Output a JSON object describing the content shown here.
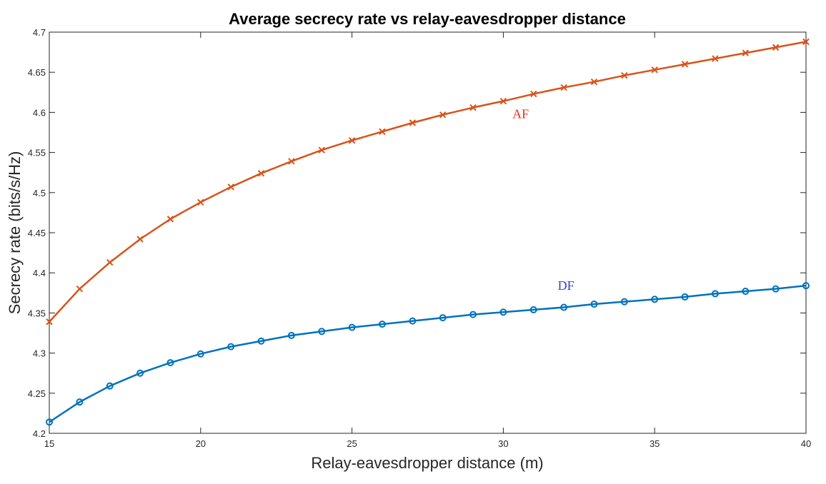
{
  "chart_data": {
    "type": "line",
    "title": "Average secrecy rate vs relay-eavesdropper distance",
    "xlabel": "Relay-eavesdropper distance (m)",
    "ylabel": "Secrecy rate (bits/s/Hz)",
    "xlim": [
      15,
      40
    ],
    "ylim": [
      4.2,
      4.7
    ],
    "xticks": [
      15,
      20,
      25,
      30,
      35,
      40
    ],
    "yticks": [
      4.2,
      4.25,
      4.3,
      4.35,
      4.4,
      4.45,
      4.5,
      4.55,
      4.6,
      4.65,
      4.7
    ],
    "xtick_labels": [
      "15",
      "20",
      "25",
      "30",
      "35",
      "40"
    ],
    "ytick_labels": [
      "4.2",
      "4.25",
      "4.3",
      "4.35",
      "4.4",
      "4.45",
      "4.5",
      "4.55",
      "4.6",
      "4.65",
      "4.7"
    ],
    "grid": false,
    "x": [
      15,
      16,
      17,
      18,
      19,
      20,
      21,
      22,
      23,
      24,
      25,
      26,
      27,
      28,
      29,
      30,
      31,
      32,
      33,
      34,
      35,
      36,
      37,
      38,
      39,
      40
    ],
    "series": [
      {
        "name": "AF",
        "color": "#D95319",
        "marker": "x",
        "values": [
          4.339,
          4.38,
          4.413,
          4.442,
          4.467,
          4.488,
          4.507,
          4.524,
          4.539,
          4.553,
          4.565,
          4.576,
          4.587,
          4.597,
          4.606,
          4.614,
          4.623,
          4.631,
          4.638,
          4.646,
          4.653,
          4.66,
          4.667,
          4.674,
          4.681,
          4.688
        ]
      },
      {
        "name": "DF",
        "color": "#0072BD",
        "marker": "o",
        "values": [
          4.214,
          4.239,
          4.259,
          4.275,
          4.288,
          4.299,
          4.308,
          4.315,
          4.322,
          4.327,
          4.332,
          4.336,
          4.34,
          4.344,
          4.348,
          4.351,
          4.354,
          4.357,
          4.361,
          4.364,
          4.367,
          4.37,
          4.374,
          4.377,
          4.38,
          4.384
        ]
      }
    ],
    "annotations": [
      {
        "text": "AF",
        "x": 30.3,
        "y": 4.593,
        "color": "#E8301C"
      },
      {
        "text": "DF",
        "x": 31.8,
        "y": 4.379,
        "color": "#3A3ADB"
      }
    ]
  }
}
